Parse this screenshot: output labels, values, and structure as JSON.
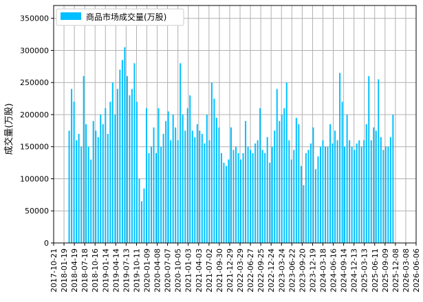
{
  "chart_data": {
    "type": "bar",
    "title": "",
    "xlabel": "",
    "ylabel": "成交量(万股)",
    "series": [
      {
        "name": "商品市场成交量(万股)",
        "color": "#00BFFF",
        "dates": [
          "2018-03-05",
          "2018-03-26",
          "2018-04-16",
          "2018-05-07",
          "2018-05-28",
          "2018-06-18",
          "2018-07-09",
          "2018-07-30",
          "2018-08-20",
          "2018-09-10",
          "2018-10-01",
          "2018-10-22",
          "2018-11-12",
          "2018-12-03",
          "2018-12-24",
          "2019-01-14",
          "2019-02-04",
          "2019-02-25",
          "2019-03-18",
          "2019-04-08",
          "2019-04-29",
          "2019-05-20",
          "2019-06-10",
          "2019-07-01",
          "2019-07-22",
          "2019-08-12",
          "2019-09-02",
          "2019-09-23",
          "2019-10-14",
          "2019-11-04",
          "2019-11-25",
          "2019-12-16",
          "2020-01-06",
          "2020-01-27",
          "2020-02-17",
          "2020-03-09",
          "2020-03-30",
          "2020-04-20",
          "2020-05-11",
          "2020-06-01",
          "2020-06-22",
          "2020-07-13",
          "2020-08-03",
          "2020-08-24",
          "2020-09-14",
          "2020-10-05",
          "2020-10-26",
          "2020-11-16",
          "2020-12-07",
          "2020-12-28",
          "2021-01-18",
          "2021-02-08",
          "2021-03-01",
          "2021-03-22",
          "2021-04-12",
          "2021-05-03",
          "2021-05-24",
          "2021-06-14",
          "2021-07-05",
          "2021-07-26",
          "2021-08-16",
          "2021-09-06",
          "2021-09-27",
          "2021-10-18",
          "2021-11-08",
          "2021-11-29",
          "2021-12-20",
          "2022-01-10",
          "2022-01-31",
          "2022-02-21",
          "2022-03-14",
          "2022-04-04",
          "2022-04-25",
          "2022-05-16",
          "2022-06-06",
          "2022-06-27",
          "2022-07-18",
          "2022-08-08",
          "2022-08-29",
          "2022-09-19",
          "2022-10-10",
          "2022-10-31",
          "2022-11-21",
          "2022-12-12",
          "2023-01-02",
          "2023-01-23",
          "2023-02-13",
          "2023-03-06",
          "2023-03-27",
          "2023-04-17",
          "2023-05-08",
          "2023-05-29",
          "2023-06-19",
          "2023-07-10",
          "2023-07-31",
          "2023-08-21",
          "2023-09-11",
          "2023-10-02",
          "2023-10-23",
          "2023-11-13",
          "2023-12-04",
          "2023-12-25",
          "2024-01-15",
          "2024-02-05",
          "2024-02-26",
          "2024-03-18",
          "2024-04-08",
          "2024-04-29",
          "2024-05-20",
          "2024-06-10",
          "2024-07-01",
          "2024-07-22",
          "2024-08-12",
          "2024-09-02",
          "2024-09-23",
          "2024-10-14",
          "2024-11-04",
          "2024-11-25",
          "2024-12-16",
          "2025-01-06",
          "2025-01-27",
          "2025-02-17",
          "2025-03-10",
          "2025-03-31",
          "2025-04-21",
          "2025-05-12",
          "2025-06-02",
          "2025-06-23",
          "2025-07-14",
          "2025-08-04",
          "2025-08-25",
          "2025-09-15",
          "2025-10-06",
          "2025-10-27",
          "2025-11-17"
        ],
        "values": [
          175000,
          240000,
          220000,
          160000,
          170000,
          150000,
          260000,
          185000,
          150000,
          130000,
          190000,
          175000,
          165000,
          200000,
          185000,
          210000,
          170000,
          220000,
          250000,
          200000,
          240000,
          270000,
          285000,
          305000,
          260000,
          230000,
          240000,
          280000,
          220000,
          100000,
          65000,
          85000,
          210000,
          140000,
          150000,
          180000,
          140000,
          210000,
          150000,
          170000,
          190000,
          205000,
          160000,
          200000,
          180000,
          160000,
          280000,
          200000,
          175000,
          210000,
          230000,
          175000,
          165000,
          185000,
          175000,
          170000,
          155000,
          200000,
          160000,
          250000,
          225000,
          195000,
          180000,
          140000,
          125000,
          120000,
          130000,
          180000,
          145000,
          150000,
          140000,
          130000,
          140000,
          190000,
          150000,
          145000,
          140000,
          155000,
          160000,
          210000,
          145000,
          140000,
          165000,
          125000,
          150000,
          175000,
          240000,
          190000,
          200000,
          210000,
          250000,
          160000,
          130000,
          145000,
          195000,
          185000,
          120000,
          90000,
          140000,
          145000,
          155000,
          180000,
          115000,
          135000,
          150000,
          160000,
          150000,
          150000,
          185000,
          155000,
          175000,
          160000,
          265000,
          220000,
          150000,
          200000,
          160000,
          150000,
          145000,
          155000,
          160000,
          150000,
          160000,
          185000,
          260000,
          160000,
          180000,
          175000,
          255000,
          165000,
          145000,
          150000,
          150000,
          165000,
          200000
        ]
      }
    ],
    "x_tick_labels": [
      "2017-10-21",
      "2018-01-19",
      "2018-04-19",
      "2018-07-18",
      "2018-10-16",
      "2019-01-14",
      "2019-04-14",
      "2019-07-13",
      "2019-10-11",
      "2020-01-09",
      "2020-04-08",
      "2020-07-07",
      "2020-10-05",
      "2021-01-03",
      "2021-04-03",
      "2021-07-02",
      "2021-09-30",
      "2021-12-29",
      "2022-03-29",
      "2022-06-27",
      "2022-09-25",
      "2022-12-24",
      "2023-03-24",
      "2023-06-22",
      "2023-09-20",
      "2023-12-19",
      "2024-03-18",
      "2024-06-16",
      "2024-09-14",
      "2024-12-13",
      "2025-03-13",
      "2025-06-11",
      "2025-09-09",
      "2025-12-08",
      "2026-03-08",
      "2026-06-06"
    ],
    "y_tick_labels": [
      "0",
      "50000",
      "100000",
      "150000",
      "200000",
      "250000",
      "300000",
      "350000"
    ],
    "xlim": [
      "2017-10-21",
      "2026-06-06"
    ],
    "ylim": [
      0,
      370000
    ],
    "grid": true,
    "legend_position": "top-left"
  }
}
